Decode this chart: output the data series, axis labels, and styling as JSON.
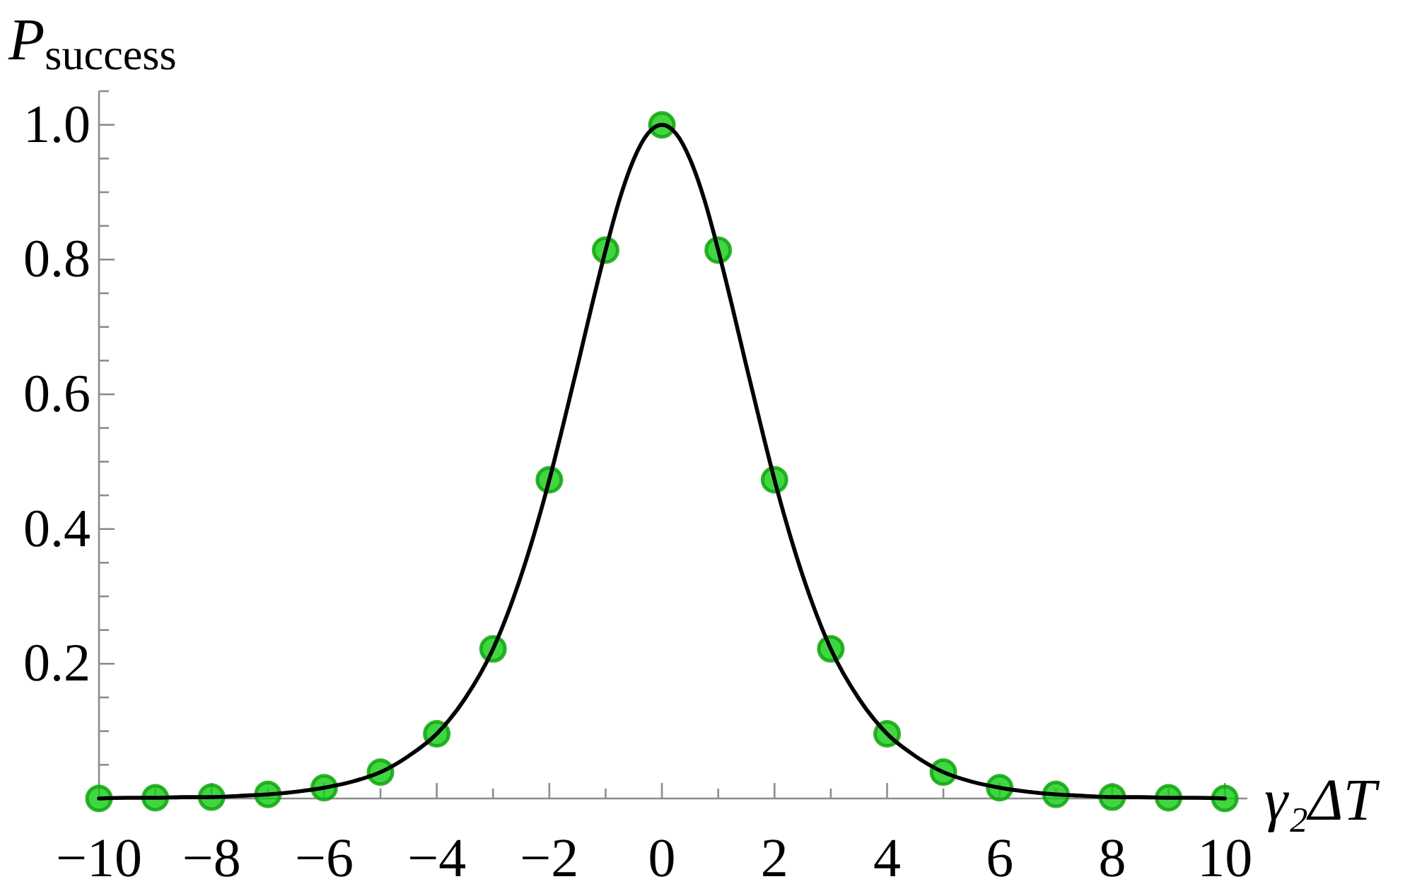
{
  "chart_data": {
    "type": "scatter",
    "xlabel": "γ₂ΔT",
    "ylabel": "P$_{success}$",
    "xlim": [
      -10,
      10.4
    ],
    "ylim": [
      0,
      1.05
    ],
    "xticks": [
      {
        "value": -10,
        "label": "−10"
      },
      {
        "value": -9,
        "label": null
      },
      {
        "value": -8,
        "label": "−8"
      },
      {
        "value": -7,
        "label": null
      },
      {
        "value": -6,
        "label": "−6"
      },
      {
        "value": -5,
        "label": null
      },
      {
        "value": -4,
        "label": "−4"
      },
      {
        "value": -3,
        "label": null
      },
      {
        "value": -2,
        "label": "−2"
      },
      {
        "value": -1,
        "label": null
      },
      0,
      {
        "value": 1,
        "label": null
      },
      2,
      {
        "value": 3,
        "label": null
      },
      4,
      {
        "value": 5,
        "label": null
      },
      6,
      {
        "value": 7,
        "label": null
      },
      8,
      {
        "value": 9,
        "label": null
      },
      10
    ],
    "yticks": [
      {
        "value": 0.05,
        "label": null
      },
      {
        "value": 0.1,
        "label": null
      },
      {
        "value": 0.15,
        "label": null
      },
      0.2,
      {
        "value": 0.25,
        "label": null
      },
      {
        "value": 0.3,
        "label": null
      },
      {
        "value": 0.35,
        "label": null
      },
      0.4,
      {
        "value": 0.45,
        "label": null
      },
      {
        "value": 0.5,
        "label": null
      },
      {
        "value": 0.55,
        "label": null
      },
      0.6,
      {
        "value": 0.65,
        "label": null
      },
      {
        "value": 0.7,
        "label": null
      },
      {
        "value": 0.75,
        "label": null
      },
      0.8,
      {
        "value": 0.85,
        "label": null
      },
      {
        "value": 0.9,
        "label": null
      },
      {
        "value": 0.95,
        "label": null
      },
      {
        "value": 1,
        "label": "1.0"
      },
      {
        "value": 1.05,
        "label": null
      }
    ],
    "series": [
      {
        "marker": "circle",
        "color": "#11cc11",
        "x": [
          -10,
          -9,
          -8,
          -7,
          -6,
          -5,
          -4,
          -3,
          -2,
          -1,
          0,
          1,
          2,
          3,
          4,
          5,
          6,
          7,
          8,
          9,
          10
        ],
        "values": [
          0,
          0.001,
          0.002,
          0.006,
          0.016,
          0.039,
          0.096,
          0.222,
          0.473,
          0.814,
          1,
          0.814,
          0.473,
          0.222,
          0.096,
          0.039,
          0.016,
          0.006,
          0.002,
          0.001,
          0
        ]
      },
      {
        "type": "line",
        "marker": "none",
        "color": "#000000",
        "x": [
          -10,
          -9.5,
          -9,
          -8.5,
          -8,
          -7.5,
          -7,
          -6.5,
          -6,
          -5.5,
          -5,
          -4.5,
          -4,
          -3.5,
          -3,
          -2.5,
          -2.25,
          -2,
          -1.75,
          -1.5,
          -1.25,
          -1,
          -0.75,
          -0.5,
          -0.25,
          0,
          0.25,
          0.5,
          0.75,
          1,
          1.25,
          1.5,
          1.75,
          2,
          2.25,
          2.5,
          3,
          3.5,
          4,
          4.5,
          5,
          5.5,
          6,
          6.5,
          7,
          7.5,
          8,
          8.5,
          9,
          9.5,
          10
        ],
        "values": [
          0,
          0.001,
          0.001,
          0.002,
          0.002,
          0.004,
          0.006,
          0.01,
          0.016,
          0.025,
          0.039,
          0.063,
          0.096,
          0.148,
          0.222,
          0.331,
          0.398,
          0.473,
          0.556,
          0.642,
          0.73,
          0.814,
          0.89,
          0.949,
          0.987,
          1,
          0.987,
          0.949,
          0.89,
          0.814,
          0.73,
          0.642,
          0.556,
          0.473,
          0.398,
          0.331,
          0.222,
          0.148,
          0.096,
          0.063,
          0.039,
          0.025,
          0.016,
          0.01,
          0.006,
          0.004,
          0.002,
          0.002,
          0.001,
          0.001,
          0
        ]
      }
    ]
  }
}
